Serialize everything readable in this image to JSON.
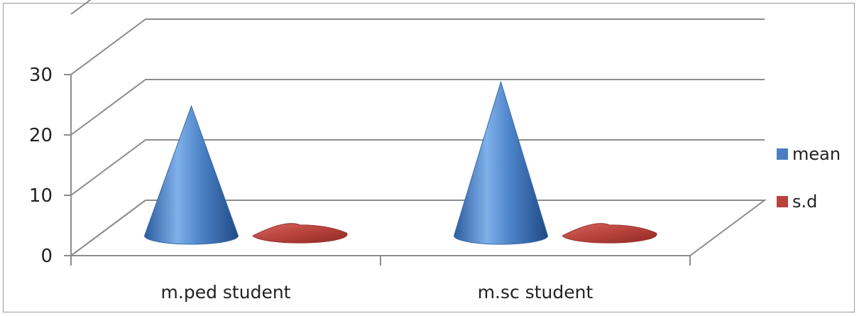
{
  "chart_data": {
    "type": "bar",
    "style": "3d-cone",
    "categories": [
      "m.ped student",
      "m.sc student"
    ],
    "series": [
      {
        "name": "mean",
        "values": [
          21.5,
          25.5
        ],
        "color": "#4a7fc1"
      },
      {
        "name": "s.d",
        "values": [
          1.8,
          1.8
        ],
        "color": "#b8423c"
      }
    ],
    "y_ticks": [
      "0",
      "10",
      "20",
      "30"
    ],
    "ylim": [
      0,
      30
    ],
    "grid": true,
    "legend_position": "right"
  }
}
